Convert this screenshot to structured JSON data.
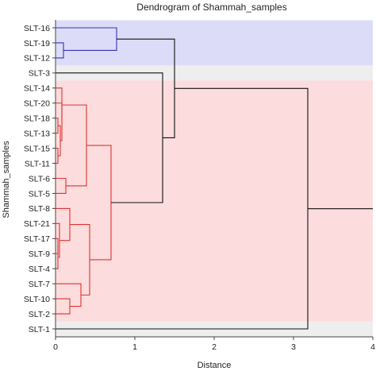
{
  "chart_data": {
    "type": "dendrogram",
    "title": "Dendrogram of Shammah_samples",
    "xlabel": "Distance",
    "ylabel": "Shammah_samples",
    "xlim": [
      0,
      4
    ],
    "xticks": [
      "0",
      "1",
      "2",
      "3",
      "4"
    ],
    "leaves": [
      "SLT-16",
      "SLT-19",
      "SLT-12",
      "SLT-3",
      "SLT-14",
      "SLT-20",
      "SLT-18",
      "SLT-13",
      "SLT-15",
      "SLT-11",
      "SLT-6",
      "SLT-5",
      "SLT-8",
      "SLT-21",
      "SLT-17",
      "SLT-9",
      "SLT-4",
      "SLT-7",
      "SLT-10",
      "SLT-2",
      "SLT-1"
    ],
    "cluster_bands": [
      {
        "first": 0,
        "last": 2,
        "color": "#dcdcf8"
      },
      {
        "first": 3,
        "last": 3,
        "color": "#eeeeee"
      },
      {
        "first": 4,
        "last": 19,
        "color": "#fcdcdc"
      },
      {
        "first": 20,
        "last": 20,
        "color": "#eeeeee"
      }
    ],
    "colors": {
      "blue_cluster": "#3333bb",
      "red_cluster": "#dd3333",
      "root": "#111111"
    },
    "merges": [
      {
        "a": [
          1,
          0
        ],
        "b": [
          2,
          0
        ],
        "h": 0.1,
        "color": "blue"
      },
      {
        "a": [
          0,
          0
        ],
        "b": [
          1.5,
          0.1
        ],
        "h": 0.77,
        "color": "blue"
      },
      {
        "a": [
          6,
          0
        ],
        "b": [
          7,
          0
        ],
        "h": 0.03,
        "color": "red"
      },
      {
        "a": [
          8,
          0
        ],
        "b": [
          9,
          0
        ],
        "h": 0.03,
        "color": "red"
      },
      {
        "a": [
          6.5,
          0.03
        ],
        "b": [
          8.5,
          0.03
        ],
        "h": 0.06,
        "color": "red"
      },
      {
        "a": [
          5,
          0
        ],
        "b": [
          7.5,
          0.06
        ],
        "h": 0.08,
        "color": "red"
      },
      {
        "a": [
          4,
          0
        ],
        "b": [
          6.25,
          0.08
        ],
        "h": 0.08,
        "color": "red"
      },
      {
        "a": [
          10,
          0
        ],
        "b": [
          11,
          0
        ],
        "h": 0.13,
        "color": "red"
      },
      {
        "a": [
          5.125,
          0.08
        ],
        "b": [
          10.5,
          0.13
        ],
        "h": 0.39,
        "color": "red"
      },
      {
        "a": [
          14,
          0
        ],
        "b": [
          15,
          0
        ],
        "h": 0.03,
        "color": "red"
      },
      {
        "a": [
          14.5,
          0.03
        ],
        "b": [
          16,
          0
        ],
        "h": 0.03,
        "color": "red"
      },
      {
        "a": [
          13,
          0
        ],
        "b": [
          15.25,
          0.03
        ],
        "h": 0.05,
        "color": "red"
      },
      {
        "a": [
          12,
          0
        ],
        "b": [
          14.125,
          0.05
        ],
        "h": 0.18,
        "color": "red"
      },
      {
        "a": [
          18,
          0
        ],
        "b": [
          19,
          0
        ],
        "h": 0.18,
        "color": "red"
      },
      {
        "a": [
          17,
          0
        ],
        "b": [
          18.5,
          0.18
        ],
        "h": 0.32,
        "color": "red"
      },
      {
        "a": [
          13.0625,
          0.18
        ],
        "b": [
          17.75,
          0.32
        ],
        "h": 0.43,
        "color": "red"
      },
      {
        "a": [
          7.8125,
          0.39
        ],
        "b": [
          15.40625,
          0.43
        ],
        "h": 0.7,
        "color": "red"
      },
      {
        "a": [
          3,
          0
        ],
        "b": [
          11.609375,
          0.7
        ],
        "h": 1.35,
        "color": "black"
      },
      {
        "a": [
          0.75,
          0.77
        ],
        "b": [
          7.3046875,
          1.35
        ],
        "h": 1.5,
        "color": "black"
      },
      {
        "a": [
          4.02734375,
          1.5
        ],
        "b": [
          20,
          0
        ],
        "h": 3.18,
        "color": "black"
      }
    ]
  }
}
